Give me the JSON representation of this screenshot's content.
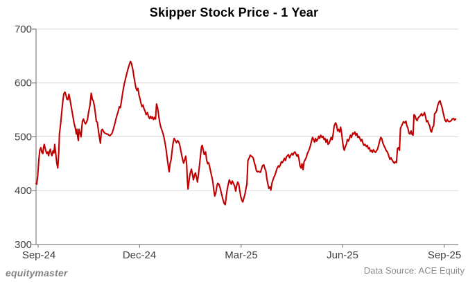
{
  "title": "Skipper Stock Price - 1 Year",
  "footer": {
    "brand": "equitymaster",
    "brand_color": "#808285",
    "source_text": "Data Source: ACE Equity",
    "source_color": "#8c8c8c"
  },
  "chart_data": {
    "type": "line",
    "title": "Skipper Stock Price - 1 Year",
    "series_name": "Skipper stock price",
    "x_ticks": [
      "Sep-24",
      "Dec-24",
      "Mar-25",
      "Jun-25",
      "Sep-25"
    ],
    "x_tick_months": [
      0,
      3,
      6,
      9,
      12
    ],
    "y_ticks": [
      700,
      600,
      500,
      400,
      300
    ],
    "ylim": [
      300,
      700
    ],
    "xlim_months": [
      0,
      12
    ],
    "grid": "horizontal",
    "legend": "none",
    "line_color": "#C00000",
    "grid_color": "#D9D9D9",
    "axis_color": "#808080",
    "label_color": "#404040",
    "x_unit": "months since Sep-24",
    "points": [
      [
        -0.06,
        414
      ],
      [
        -0.04,
        412
      ],
      [
        -0.01,
        429
      ],
      [
        0.02,
        457
      ],
      [
        0.05,
        475
      ],
      [
        0.08,
        480
      ],
      [
        0.11,
        471
      ],
      [
        0.14,
        469
      ],
      [
        0.16,
        480
      ],
      [
        0.18,
        486
      ],
      [
        0.22,
        476
      ],
      [
        0.25,
        469
      ],
      [
        0.28,
        472
      ],
      [
        0.31,
        465
      ],
      [
        0.33,
        472
      ],
      [
        0.36,
        477
      ],
      [
        0.39,
        468
      ],
      [
        0.41,
        465
      ],
      [
        0.44,
        474
      ],
      [
        0.47,
        470
      ],
      [
        0.49,
        486
      ],
      [
        0.52,
        469
      ],
      [
        0.55,
        452
      ],
      [
        0.58,
        442
      ],
      [
        0.61,
        472
      ],
      [
        0.63,
        505
      ],
      [
        0.67,
        527
      ],
      [
        0.7,
        548
      ],
      [
        0.73,
        566
      ],
      [
        0.76,
        580
      ],
      [
        0.79,
        583
      ],
      [
        0.82,
        578
      ],
      [
        0.85,
        570
      ],
      [
        0.88,
        569
      ],
      [
        0.91,
        579
      ],
      [
        0.94,
        570
      ],
      [
        0.97,
        559
      ],
      [
        1.0,
        548
      ],
      [
        1.03,
        537
      ],
      [
        1.06,
        526
      ],
      [
        1.1,
        516
      ],
      [
        1.13,
        505
      ],
      [
        1.15,
        514
      ],
      [
        1.17,
        499
      ],
      [
        1.19,
        493
      ],
      [
        1.21,
        514
      ],
      [
        1.24,
        507
      ],
      [
        1.27,
        500
      ],
      [
        1.29,
        518
      ],
      [
        1.31,
        529
      ],
      [
        1.34,
        533
      ],
      [
        1.37,
        527
      ],
      [
        1.4,
        524
      ],
      [
        1.43,
        527
      ],
      [
        1.46,
        532
      ],
      [
        1.49,
        545
      ],
      [
        1.53,
        558
      ],
      [
        1.56,
        574
      ],
      [
        1.57,
        581
      ],
      [
        1.6,
        570
      ],
      [
        1.63,
        567
      ],
      [
        1.66,
        558
      ],
      [
        1.69,
        544
      ],
      [
        1.72,
        529
      ],
      [
        1.75,
        527
      ],
      [
        1.78,
        512
      ],
      [
        1.81,
        500
      ],
      [
        1.84,
        488
      ],
      [
        1.87,
        512
      ],
      [
        1.9,
        514
      ],
      [
        1.94,
        509
      ],
      [
        1.97,
        507
      ],
      [
        2.0,
        506
      ],
      [
        2.03,
        505
      ],
      [
        2.06,
        505
      ],
      [
        2.09,
        503
      ],
      [
        2.12,
        502
      ],
      [
        2.15,
        504
      ],
      [
        2.18,
        506
      ],
      [
        2.21,
        511
      ],
      [
        2.24,
        518
      ],
      [
        2.27,
        525
      ],
      [
        2.3,
        533
      ],
      [
        2.33,
        540
      ],
      [
        2.37,
        548
      ],
      [
        2.4,
        556
      ],
      [
        2.43,
        554
      ],
      [
        2.46,
        565
      ],
      [
        2.49,
        578
      ],
      [
        2.52,
        590
      ],
      [
        2.55,
        599
      ],
      [
        2.58,
        607
      ],
      [
        2.61,
        615
      ],
      [
        2.64,
        622
      ],
      [
        2.67,
        629
      ],
      [
        2.7,
        635
      ],
      [
        2.73,
        640
      ],
      [
        2.76,
        636
      ],
      [
        2.8,
        625
      ],
      [
        2.83,
        612
      ],
      [
        2.86,
        601
      ],
      [
        2.89,
        591
      ],
      [
        2.92,
        586
      ],
      [
        2.95,
        590
      ],
      [
        2.98,
        578
      ],
      [
        3.01,
        571
      ],
      [
        3.04,
        562
      ],
      [
        3.07,
        556
      ],
      [
        3.1,
        559
      ],
      [
        3.13,
        552
      ],
      [
        3.16,
        548
      ],
      [
        3.19,
        541
      ],
      [
        3.23,
        545
      ],
      [
        3.26,
        538
      ],
      [
        3.29,
        534
      ],
      [
        3.32,
        538
      ],
      [
        3.35,
        534
      ],
      [
        3.38,
        537
      ],
      [
        3.41,
        532
      ],
      [
        3.44,
        536
      ],
      [
        3.47,
        533
      ],
      [
        3.5,
        561
      ],
      [
        3.53,
        554
      ],
      [
        3.56,
        541
      ],
      [
        3.59,
        528
      ],
      [
        3.62,
        519
      ],
      [
        3.66,
        512
      ],
      [
        3.69,
        506
      ],
      [
        3.72,
        499
      ],
      [
        3.75,
        489
      ],
      [
        3.78,
        477
      ],
      [
        3.81,
        463
      ],
      [
        3.84,
        448
      ],
      [
        3.87,
        435
      ],
      [
        3.9,
        450
      ],
      [
        3.93,
        458
      ],
      [
        3.96,
        474
      ],
      [
        3.99,
        489
      ],
      [
        4.02,
        497
      ],
      [
        4.05,
        494
      ],
      [
        4.09,
        489
      ],
      [
        4.12,
        493
      ],
      [
        4.15,
        491
      ],
      [
        4.18,
        486
      ],
      [
        4.21,
        477
      ],
      [
        4.24,
        467
      ],
      [
        4.27,
        458
      ],
      [
        4.3,
        451
      ],
      [
        4.33,
        457
      ],
      [
        4.36,
        464
      ],
      [
        4.39,
        450
      ],
      [
        4.41,
        420
      ],
      [
        4.43,
        403
      ],
      [
        4.46,
        418
      ],
      [
        4.49,
        431
      ],
      [
        4.53,
        440
      ],
      [
        4.56,
        431
      ],
      [
        4.59,
        420
      ],
      [
        4.62,
        429
      ],
      [
        4.65,
        433
      ],
      [
        4.68,
        425
      ],
      [
        4.71,
        416
      ],
      [
        4.74,
        431
      ],
      [
        4.77,
        448
      ],
      [
        4.8,
        465
      ],
      [
        4.83,
        482
      ],
      [
        4.85,
        484
      ],
      [
        4.88,
        476
      ],
      [
        4.91,
        467
      ],
      [
        4.95,
        472
      ],
      [
        4.98,
        457
      ],
      [
        5.01,
        450
      ],
      [
        5.04,
        452
      ],
      [
        5.07,
        444
      ],
      [
        5.1,
        435
      ],
      [
        5.13,
        427
      ],
      [
        5.16,
        418
      ],
      [
        5.19,
        402
      ],
      [
        5.22,
        390
      ],
      [
        5.25,
        395
      ],
      [
        5.28,
        408
      ],
      [
        5.31,
        414
      ],
      [
        5.34,
        412
      ],
      [
        5.38,
        405
      ],
      [
        5.41,
        397
      ],
      [
        5.44,
        389
      ],
      [
        5.47,
        382
      ],
      [
        5.5,
        376
      ],
      [
        5.53,
        374
      ],
      [
        5.56,
        389
      ],
      [
        5.59,
        403
      ],
      [
        5.62,
        412
      ],
      [
        5.65,
        420
      ],
      [
        5.68,
        416
      ],
      [
        5.71,
        412
      ],
      [
        5.74,
        418
      ],
      [
        5.77,
        414
      ],
      [
        5.81,
        408
      ],
      [
        5.84,
        399
      ],
      [
        5.87,
        410
      ],
      [
        5.9,
        416
      ],
      [
        5.93,
        412
      ],
      [
        5.96,
        400
      ],
      [
        5.99,
        389
      ],
      [
        6.02,
        382
      ],
      [
        6.05,
        379
      ],
      [
        6.08,
        386
      ],
      [
        6.11,
        393
      ],
      [
        6.14,
        403
      ],
      [
        6.17,
        412
      ],
      [
        6.2,
        456
      ],
      [
        6.24,
        461
      ],
      [
        6.27,
        466
      ],
      [
        6.3,
        464
      ],
      [
        6.33,
        463
      ],
      [
        6.36,
        460
      ],
      [
        6.39,
        452
      ],
      [
        6.42,
        446
      ],
      [
        6.45,
        437
      ],
      [
        6.48,
        435
      ],
      [
        6.51,
        436
      ],
      [
        6.54,
        435
      ],
      [
        6.57,
        434
      ],
      [
        6.6,
        440
      ],
      [
        6.63,
        446
      ],
      [
        6.67,
        448
      ],
      [
        6.7,
        441
      ],
      [
        6.73,
        437
      ],
      [
        6.76,
        422
      ],
      [
        6.79,
        412
      ],
      [
        6.82,
        404
      ],
      [
        6.85,
        407
      ],
      [
        6.88,
        401
      ],
      [
        6.91,
        414
      ],
      [
        6.94,
        420
      ],
      [
        6.97,
        425
      ],
      [
        7.0,
        429
      ],
      [
        7.03,
        435
      ],
      [
        7.06,
        441
      ],
      [
        7.1,
        446
      ],
      [
        7.13,
        444
      ],
      [
        7.16,
        448
      ],
      [
        7.19,
        454
      ],
      [
        7.22,
        452
      ],
      [
        7.25,
        456
      ],
      [
        7.28,
        460
      ],
      [
        7.31,
        456
      ],
      [
        7.34,
        463
      ],
      [
        7.37,
        465
      ],
      [
        7.4,
        467
      ],
      [
        7.43,
        461
      ],
      [
        7.46,
        465
      ],
      [
        7.5,
        469
      ],
      [
        7.53,
        466
      ],
      [
        7.56,
        470
      ],
      [
        7.59,
        472
      ],
      [
        7.62,
        468
      ],
      [
        7.65,
        464
      ],
      [
        7.68,
        467
      ],
      [
        7.71,
        459
      ],
      [
        7.74,
        446
      ],
      [
        7.77,
        442
      ],
      [
        7.8,
        450
      ],
      [
        7.83,
        439
      ],
      [
        7.86,
        454
      ],
      [
        7.89,
        457
      ],
      [
        7.92,
        461
      ],
      [
        7.96,
        469
      ],
      [
        7.99,
        473
      ],
      [
        8.02,
        478
      ],
      [
        8.05,
        484
      ],
      [
        8.08,
        492
      ],
      [
        8.11,
        499
      ],
      [
        8.14,
        495
      ],
      [
        8.17,
        490
      ],
      [
        8.2,
        497
      ],
      [
        8.23,
        492
      ],
      [
        8.26,
        495
      ],
      [
        8.29,
        501
      ],
      [
        8.32,
        497
      ],
      [
        8.35,
        503
      ],
      [
        8.39,
        499
      ],
      [
        8.42,
        501
      ],
      [
        8.45,
        495
      ],
      [
        8.48,
        497
      ],
      [
        8.51,
        490
      ],
      [
        8.54,
        495
      ],
      [
        8.57,
        486
      ],
      [
        8.6,
        488
      ],
      [
        8.63,
        493
      ],
      [
        8.66,
        499
      ],
      [
        8.69,
        495
      ],
      [
        8.72,
        505
      ],
      [
        8.75,
        520
      ],
      [
        8.79,
        526
      ],
      [
        8.82,
        522
      ],
      [
        8.85,
        511
      ],
      [
        8.88,
        514
      ],
      [
        8.91,
        509
      ],
      [
        8.94,
        518
      ],
      [
        8.97,
        507
      ],
      [
        9.0,
        490
      ],
      [
        9.03,
        478
      ],
      [
        9.05,
        475
      ],
      [
        9.08,
        482
      ],
      [
        9.11,
        486
      ],
      [
        9.14,
        495
      ],
      [
        9.17,
        492
      ],
      [
        9.2,
        497
      ],
      [
        9.23,
        503
      ],
      [
        9.26,
        499
      ],
      [
        9.3,
        507
      ],
      [
        9.33,
        505
      ],
      [
        9.36,
        509
      ],
      [
        9.39,
        503
      ],
      [
        9.42,
        506
      ],
      [
        9.45,
        499
      ],
      [
        9.48,
        501
      ],
      [
        9.51,
        497
      ],
      [
        9.54,
        492
      ],
      [
        9.57,
        495
      ],
      [
        9.6,
        488
      ],
      [
        9.63,
        484
      ],
      [
        9.66,
        486
      ],
      [
        9.7,
        482
      ],
      [
        9.73,
        484
      ],
      [
        9.76,
        478
      ],
      [
        9.79,
        480
      ],
      [
        9.82,
        473
      ],
      [
        9.85,
        475
      ],
      [
        9.88,
        471
      ],
      [
        9.91,
        476
      ],
      [
        9.94,
        473
      ],
      [
        9.97,
        471
      ],
      [
        10.0,
        474
      ],
      [
        10.03,
        477
      ],
      [
        10.07,
        486
      ],
      [
        10.1,
        494
      ],
      [
        10.13,
        499
      ],
      [
        10.16,
        496
      ],
      [
        10.19,
        488
      ],
      [
        10.22,
        484
      ],
      [
        10.25,
        480
      ],
      [
        10.28,
        475
      ],
      [
        10.31,
        473
      ],
      [
        10.34,
        469
      ],
      [
        10.37,
        463
      ],
      [
        10.4,
        458
      ],
      [
        10.43,
        461
      ],
      [
        10.47,
        456
      ],
      [
        10.5,
        453
      ],
      [
        10.53,
        451
      ],
      [
        10.56,
        454
      ],
      [
        10.59,
        452
      ],
      [
        10.62,
        478
      ],
      [
        10.65,
        480
      ],
      [
        10.68,
        475
      ],
      [
        10.71,
        516
      ],
      [
        10.74,
        520
      ],
      [
        10.77,
        524
      ],
      [
        10.8,
        528
      ],
      [
        10.84,
        526
      ],
      [
        10.87,
        529
      ],
      [
        10.9,
        520
      ],
      [
        10.93,
        516
      ],
      [
        10.96,
        507
      ],
      [
        10.99,
        505
      ],
      [
        11.02,
        511
      ],
      [
        11.05,
        505
      ],
      [
        11.08,
        503
      ],
      [
        11.11,
        541
      ],
      [
        11.14,
        539
      ],
      [
        11.17,
        533
      ],
      [
        11.2,
        530
      ],
      [
        11.23,
        535
      ],
      [
        11.26,
        537
      ],
      [
        11.29,
        539
      ],
      [
        11.33,
        543
      ],
      [
        11.36,
        539
      ],
      [
        11.39,
        541
      ],
      [
        11.42,
        545
      ],
      [
        11.45,
        537
      ],
      [
        11.48,
        528
      ],
      [
        11.51,
        530
      ],
      [
        11.54,
        524
      ],
      [
        11.57,
        521
      ],
      [
        11.6,
        511
      ],
      [
        11.63,
        509
      ],
      [
        11.66,
        518
      ],
      [
        11.69,
        520
      ],
      [
        11.72,
        543
      ],
      [
        11.75,
        545
      ],
      [
        11.78,
        549
      ],
      [
        11.81,
        558
      ],
      [
        11.85,
        565
      ],
      [
        11.88,
        567
      ],
      [
        11.91,
        560
      ],
      [
        11.94,
        554
      ],
      [
        11.97,
        545
      ],
      [
        12.0,
        537
      ],
      [
        12.03,
        530
      ],
      [
        12.06,
        528
      ],
      [
        12.09,
        532
      ],
      [
        12.12,
        529
      ],
      [
        12.15,
        528
      ],
      [
        12.18,
        529
      ],
      [
        12.21,
        530
      ],
      [
        12.24,
        533
      ],
      [
        12.28,
        534
      ],
      [
        12.31,
        531
      ],
      [
        12.34,
        533
      ]
    ]
  }
}
